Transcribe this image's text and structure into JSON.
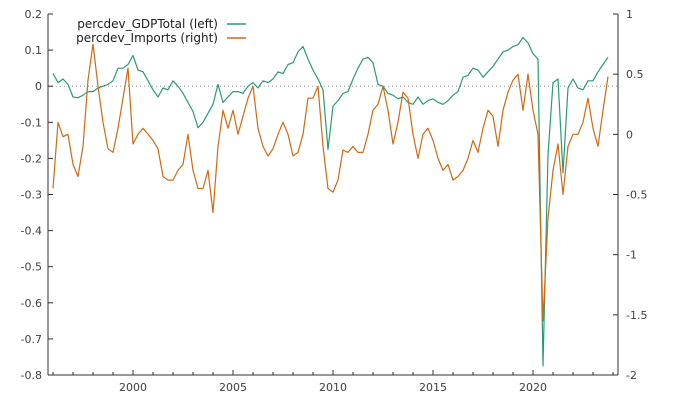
{
  "chart_data": {
    "type": "line",
    "title": "",
    "xlabel": "",
    "x_ticks": [
      "2000",
      "2005",
      "2010",
      "2015",
      "2020"
    ],
    "x_tick_values": [
      2000,
      2005,
      2010,
      2015,
      2020
    ],
    "xlim": [
      1995.75,
      2024.25
    ],
    "left_axis": {
      "ylim": [
        -0.8,
        0.2
      ],
      "ticks": [
        "0.2",
        "0.1",
        "0",
        "-0.1",
        "-0.2",
        "-0.3",
        "-0.4",
        "-0.5",
        "-0.6",
        "-0.7",
        "-0.8"
      ],
      "tick_values": [
        0.2,
        0.1,
        0,
        -0.1,
        -0.2,
        -0.3,
        -0.4,
        -0.5,
        -0.6,
        -0.7,
        -0.8
      ]
    },
    "right_axis": {
      "ylim": [
        -2,
        1
      ],
      "ticks": [
        "1",
        "0.5",
        "0",
        "-0.5",
        "-1",
        "-1.5",
        "-2"
      ],
      "tick_values": [
        1,
        0.5,
        0,
        -0.5,
        -1,
        -1.5,
        -2
      ]
    },
    "zero_line": "dotted",
    "grid": false,
    "legend_position": "top-left",
    "series": [
      {
        "name": "percdev_GDPTotal (left)",
        "color": "#2a9a79",
        "axis": "left",
        "points": [
          [
            1996.0,
            0.035
          ],
          [
            1996.25,
            0.01
          ],
          [
            1996.5,
            0.02
          ],
          [
            1996.75,
            0.005
          ],
          [
            1997.0,
            -0.03
          ],
          [
            1997.25,
            -0.032
          ],
          [
            1997.5,
            -0.025
          ],
          [
            1997.75,
            -0.015
          ],
          [
            1998.0,
            -0.015
          ],
          [
            1998.25,
            -0.005
          ],
          [
            1998.5,
            0.0
          ],
          [
            1998.75,
            0.005
          ],
          [
            1999.0,
            0.015
          ],
          [
            1999.25,
            0.05
          ],
          [
            1999.5,
            0.05
          ],
          [
            1999.75,
            0.06
          ],
          [
            2000.0,
            0.085
          ],
          [
            2000.25,
            0.045
          ],
          [
            2000.5,
            0.04
          ],
          [
            2000.75,
            0.015
          ],
          [
            2001.0,
            -0.01
          ],
          [
            2001.25,
            -0.03
          ],
          [
            2001.5,
            -0.005
          ],
          [
            2001.75,
            -0.01
          ],
          [
            2002.0,
            0.015
          ],
          [
            2002.25,
            0.0
          ],
          [
            2002.5,
            -0.02
          ],
          [
            2002.75,
            -0.045
          ],
          [
            2003.0,
            -0.07
          ],
          [
            2003.25,
            -0.115
          ],
          [
            2003.5,
            -0.1
          ],
          [
            2003.75,
            -0.075
          ],
          [
            2004.0,
            -0.05
          ],
          [
            2004.25,
            0.005
          ],
          [
            2004.5,
            -0.045
          ],
          [
            2004.75,
            -0.03
          ],
          [
            2005.0,
            -0.015
          ],
          [
            2005.25,
            -0.015
          ],
          [
            2005.5,
            -0.02
          ],
          [
            2005.75,
            0.0
          ],
          [
            2006.0,
            0.01
          ],
          [
            2006.25,
            -0.005
          ],
          [
            2006.5,
            0.015
          ],
          [
            2006.75,
            0.01
          ],
          [
            2007.0,
            0.02
          ],
          [
            2007.25,
            0.04
          ],
          [
            2007.5,
            0.035
          ],
          [
            2007.75,
            0.06
          ],
          [
            2008.0,
            0.065
          ],
          [
            2008.25,
            0.095
          ],
          [
            2008.5,
            0.11
          ],
          [
            2008.75,
            0.075
          ],
          [
            2009.0,
            0.045
          ],
          [
            2009.25,
            0.02
          ],
          [
            2009.5,
            -0.01
          ],
          [
            2009.75,
            -0.175
          ],
          [
            2010.0,
            -0.055
          ],
          [
            2010.25,
            -0.04
          ],
          [
            2010.5,
            -0.02
          ],
          [
            2010.75,
            -0.015
          ],
          [
            2011.0,
            0.02
          ],
          [
            2011.25,
            0.05
          ],
          [
            2011.5,
            0.075
          ],
          [
            2011.75,
            0.08
          ],
          [
            2012.0,
            0.065
          ],
          [
            2012.25,
            0.005
          ],
          [
            2012.5,
            0.0
          ],
          [
            2012.75,
            -0.02
          ],
          [
            2013.0,
            -0.025
          ],
          [
            2013.25,
            -0.035
          ],
          [
            2013.5,
            -0.03
          ],
          [
            2013.75,
            -0.045
          ],
          [
            2014.0,
            -0.05
          ],
          [
            2014.25,
            -0.03
          ],
          [
            2014.5,
            -0.05
          ],
          [
            2014.75,
            -0.04
          ],
          [
            2015.0,
            -0.035
          ],
          [
            2015.25,
            -0.045
          ],
          [
            2015.5,
            -0.05
          ],
          [
            2015.75,
            -0.04
          ],
          [
            2016.0,
            -0.025
          ],
          [
            2016.25,
            -0.015
          ],
          [
            2016.5,
            0.025
          ],
          [
            2016.75,
            0.03
          ],
          [
            2017.0,
            0.05
          ],
          [
            2017.25,
            0.045
          ],
          [
            2017.5,
            0.025
          ],
          [
            2017.75,
            0.04
          ],
          [
            2018.0,
            0.055
          ],
          [
            2018.25,
            0.075
          ],
          [
            2018.5,
            0.095
          ],
          [
            2018.75,
            0.1
          ],
          [
            2019.0,
            0.11
          ],
          [
            2019.25,
            0.115
          ],
          [
            2019.5,
            0.135
          ],
          [
            2019.75,
            0.12
          ],
          [
            2020.0,
            0.09
          ],
          [
            2020.25,
            0.075
          ],
          [
            2020.5,
            -0.775
          ],
          [
            2020.75,
            -0.19
          ],
          [
            2021.0,
            0.01
          ],
          [
            2021.25,
            0.02
          ],
          [
            2021.5,
            -0.24
          ],
          [
            2021.75,
            -0.005
          ],
          [
            2022.0,
            0.02
          ],
          [
            2022.25,
            -0.005
          ],
          [
            2022.5,
            -0.01
          ],
          [
            2022.75,
            0.015
          ],
          [
            2023.0,
            0.015
          ],
          [
            2023.25,
            0.04
          ],
          [
            2023.5,
            0.06
          ],
          [
            2023.75,
            0.08
          ]
        ]
      },
      {
        "name": "percdev_Imports (right)",
        "color": "#d06a10",
        "axis": "right",
        "points": [
          [
            1996.0,
            -0.45
          ],
          [
            1996.25,
            0.1
          ],
          [
            1996.5,
            -0.02
          ],
          [
            1996.75,
            0.0
          ],
          [
            1997.0,
            -0.25
          ],
          [
            1997.25,
            -0.35
          ],
          [
            1997.5,
            -0.1
          ],
          [
            1997.75,
            0.45
          ],
          [
            1998.0,
            0.75
          ],
          [
            1998.25,
            0.4
          ],
          [
            1998.5,
            0.1
          ],
          [
            1998.75,
            -0.12
          ],
          [
            1999.0,
            -0.15
          ],
          [
            1999.25,
            0.05
          ],
          [
            1999.5,
            0.3
          ],
          [
            1999.75,
            0.55
          ],
          [
            2000.0,
            -0.08
          ],
          [
            2000.25,
            0.0
          ],
          [
            2000.5,
            0.05
          ],
          [
            2000.75,
            0.0
          ],
          [
            2001.0,
            -0.05
          ],
          [
            2001.25,
            -0.12
          ],
          [
            2001.5,
            -0.35
          ],
          [
            2001.75,
            -0.38
          ],
          [
            2002.0,
            -0.38
          ],
          [
            2002.25,
            -0.3
          ],
          [
            2002.5,
            -0.25
          ],
          [
            2002.75,
            0.0
          ],
          [
            2003.0,
            -0.3
          ],
          [
            2003.25,
            -0.45
          ],
          [
            2003.5,
            -0.45
          ],
          [
            2003.75,
            -0.3
          ],
          [
            2004.0,
            -0.65
          ],
          [
            2004.25,
            -0.1
          ],
          [
            2004.5,
            0.2
          ],
          [
            2004.75,
            0.05
          ],
          [
            2005.0,
            0.2
          ],
          [
            2005.25,
            0.0
          ],
          [
            2005.5,
            0.15
          ],
          [
            2005.75,
            0.3
          ],
          [
            2006.0,
            0.4
          ],
          [
            2006.25,
            0.05
          ],
          [
            2006.5,
            -0.1
          ],
          [
            2006.75,
            -0.18
          ],
          [
            2007.0,
            -0.12
          ],
          [
            2007.25,
            0.0
          ],
          [
            2007.5,
            0.1
          ],
          [
            2007.75,
            0.0
          ],
          [
            2008.0,
            -0.18
          ],
          [
            2008.25,
            -0.15
          ],
          [
            2008.5,
            0.0
          ],
          [
            2008.75,
            0.3
          ],
          [
            2009.0,
            0.3
          ],
          [
            2009.25,
            0.4
          ],
          [
            2009.5,
            -0.1
          ],
          [
            2009.75,
            -0.45
          ],
          [
            2010.0,
            -0.48
          ],
          [
            2010.25,
            -0.38
          ],
          [
            2010.5,
            -0.13
          ],
          [
            2010.75,
            -0.15
          ],
          [
            2011.0,
            -0.1
          ],
          [
            2011.25,
            -0.15
          ],
          [
            2011.5,
            -0.15
          ],
          [
            2011.75,
            0.0
          ],
          [
            2012.0,
            0.2
          ],
          [
            2012.25,
            0.25
          ],
          [
            2012.5,
            0.4
          ],
          [
            2012.75,
            0.2
          ],
          [
            2013.0,
            -0.08
          ],
          [
            2013.25,
            0.1
          ],
          [
            2013.5,
            0.35
          ],
          [
            2013.75,
            0.3
          ],
          [
            2014.0,
            0.0
          ],
          [
            2014.25,
            -0.2
          ],
          [
            2014.5,
            0.0
          ],
          [
            2014.75,
            0.05
          ],
          [
            2015.0,
            -0.05
          ],
          [
            2015.25,
            -0.2
          ],
          [
            2015.5,
            -0.3
          ],
          [
            2015.75,
            -0.25
          ],
          [
            2016.0,
            -0.38
          ],
          [
            2016.25,
            -0.35
          ],
          [
            2016.5,
            -0.3
          ],
          [
            2016.75,
            -0.2
          ],
          [
            2017.0,
            -0.05
          ],
          [
            2017.25,
            -0.15
          ],
          [
            2017.5,
            0.05
          ],
          [
            2017.75,
            0.2
          ],
          [
            2018.0,
            0.15
          ],
          [
            2018.25,
            -0.1
          ],
          [
            2018.5,
            0.2
          ],
          [
            2018.75,
            0.35
          ],
          [
            2019.0,
            0.45
          ],
          [
            2019.25,
            0.5
          ],
          [
            2019.5,
            0.2
          ],
          [
            2019.75,
            0.5
          ],
          [
            2020.0,
            0.2
          ],
          [
            2020.25,
            0.0
          ],
          [
            2020.5,
            -1.55
          ],
          [
            2020.75,
            -0.7
          ],
          [
            2021.0,
            -0.3
          ],
          [
            2021.25,
            -0.08
          ],
          [
            2021.5,
            -0.5
          ],
          [
            2021.75,
            -0.1
          ],
          [
            2022.0,
            0.0
          ],
          [
            2022.25,
            0.0
          ],
          [
            2022.5,
            0.1
          ],
          [
            2022.75,
            0.3
          ],
          [
            2023.0,
            0.05
          ],
          [
            2023.25,
            -0.1
          ],
          [
            2023.5,
            0.2
          ],
          [
            2023.75,
            0.48
          ]
        ]
      }
    ]
  }
}
